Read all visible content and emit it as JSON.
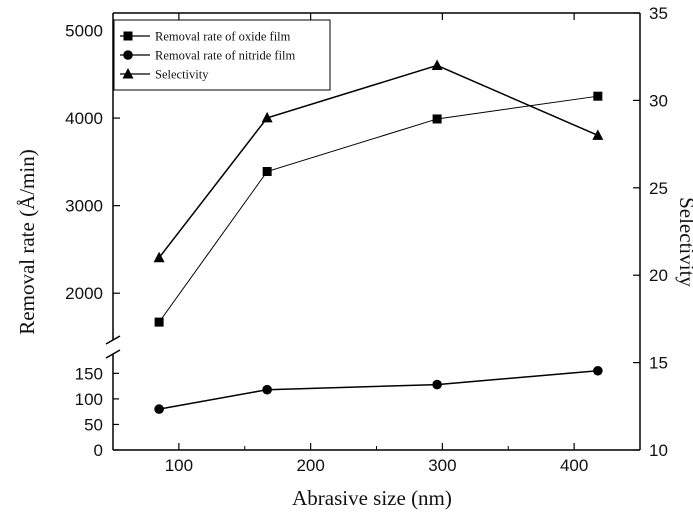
{
  "chart_data": {
    "type": "line",
    "xlabel": "Abrasive size (nm)",
    "ylabel_left": "Removal rate (Å/min)",
    "ylabel_right": "Selectivity",
    "x_ticks": [
      100,
      200,
      300,
      400
    ],
    "x_range": [
      50,
      450
    ],
    "y_left_upper_ticks": [
      2000,
      3000,
      4000,
      5000
    ],
    "y_left_upper_range": [
      1500,
      5200
    ],
    "y_left_lower_ticks": [
      0,
      50,
      100,
      150
    ],
    "y_left_lower_range": [
      0,
      180
    ],
    "y_right_ticks": [
      10,
      15,
      20,
      25,
      30,
      35
    ],
    "y_right_range": [
      10,
      35
    ],
    "axis_break": true,
    "grid": false,
    "legend_position": "top-left",
    "series": [
      {
        "name": "Removal rate of oxide film",
        "axis": "left-upper",
        "marker": "square",
        "x": [
          85,
          167,
          296,
          418
        ],
        "y": [
          1670,
          3390,
          3990,
          4250
        ]
      },
      {
        "name": "Removal rate of nitride film",
        "axis": "left-lower",
        "marker": "circle",
        "x": [
          85,
          167,
          296,
          418
        ],
        "y": [
          80,
          118,
          128,
          155
        ]
      },
      {
        "name": "Selectivity",
        "axis": "right",
        "marker": "triangle",
        "x": [
          85,
          167,
          296,
          418
        ],
        "y": [
          21,
          29,
          32,
          28
        ]
      }
    ]
  }
}
